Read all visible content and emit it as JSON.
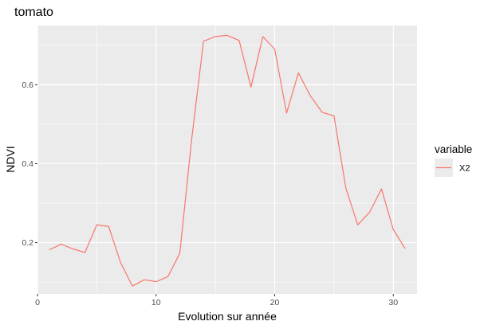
{
  "chart_data": {
    "type": "line",
    "title": "tomato",
    "xlabel": "Evolution sur année",
    "ylabel": "NDVI",
    "xlim": [
      0,
      32
    ],
    "ylim": [
      0.07,
      0.75
    ],
    "x_ticks": [
      0,
      10,
      20,
      30
    ],
    "x_tick_labels": [
      "0",
      "10",
      "20",
      "30"
    ],
    "y_ticks": [
      0.2,
      0.4,
      0.6
    ],
    "y_tick_labels": [
      "0.2",
      "0.4",
      "0.6"
    ],
    "grid": true,
    "legend": {
      "title": "variable",
      "position": "right"
    },
    "series": [
      {
        "name": "X2",
        "color": "#f8766d",
        "x": [
          1,
          2,
          3,
          4,
          5,
          6,
          7,
          8,
          9,
          10,
          11,
          12,
          13,
          14,
          15,
          16,
          17,
          18,
          19,
          20,
          21,
          22,
          23,
          24,
          25,
          26,
          27,
          28,
          29,
          30,
          31
        ],
        "y": [
          0.182,
          0.196,
          0.184,
          0.175,
          0.245,
          0.241,
          0.15,
          0.09,
          0.106,
          0.101,
          0.114,
          0.173,
          0.462,
          0.71,
          0.722,
          0.725,
          0.712,
          0.594,
          0.722,
          0.69,
          0.528,
          0.63,
          0.572,
          0.53,
          0.521,
          0.338,
          0.245,
          0.277,
          0.336,
          0.233,
          0.185
        ]
      }
    ]
  }
}
